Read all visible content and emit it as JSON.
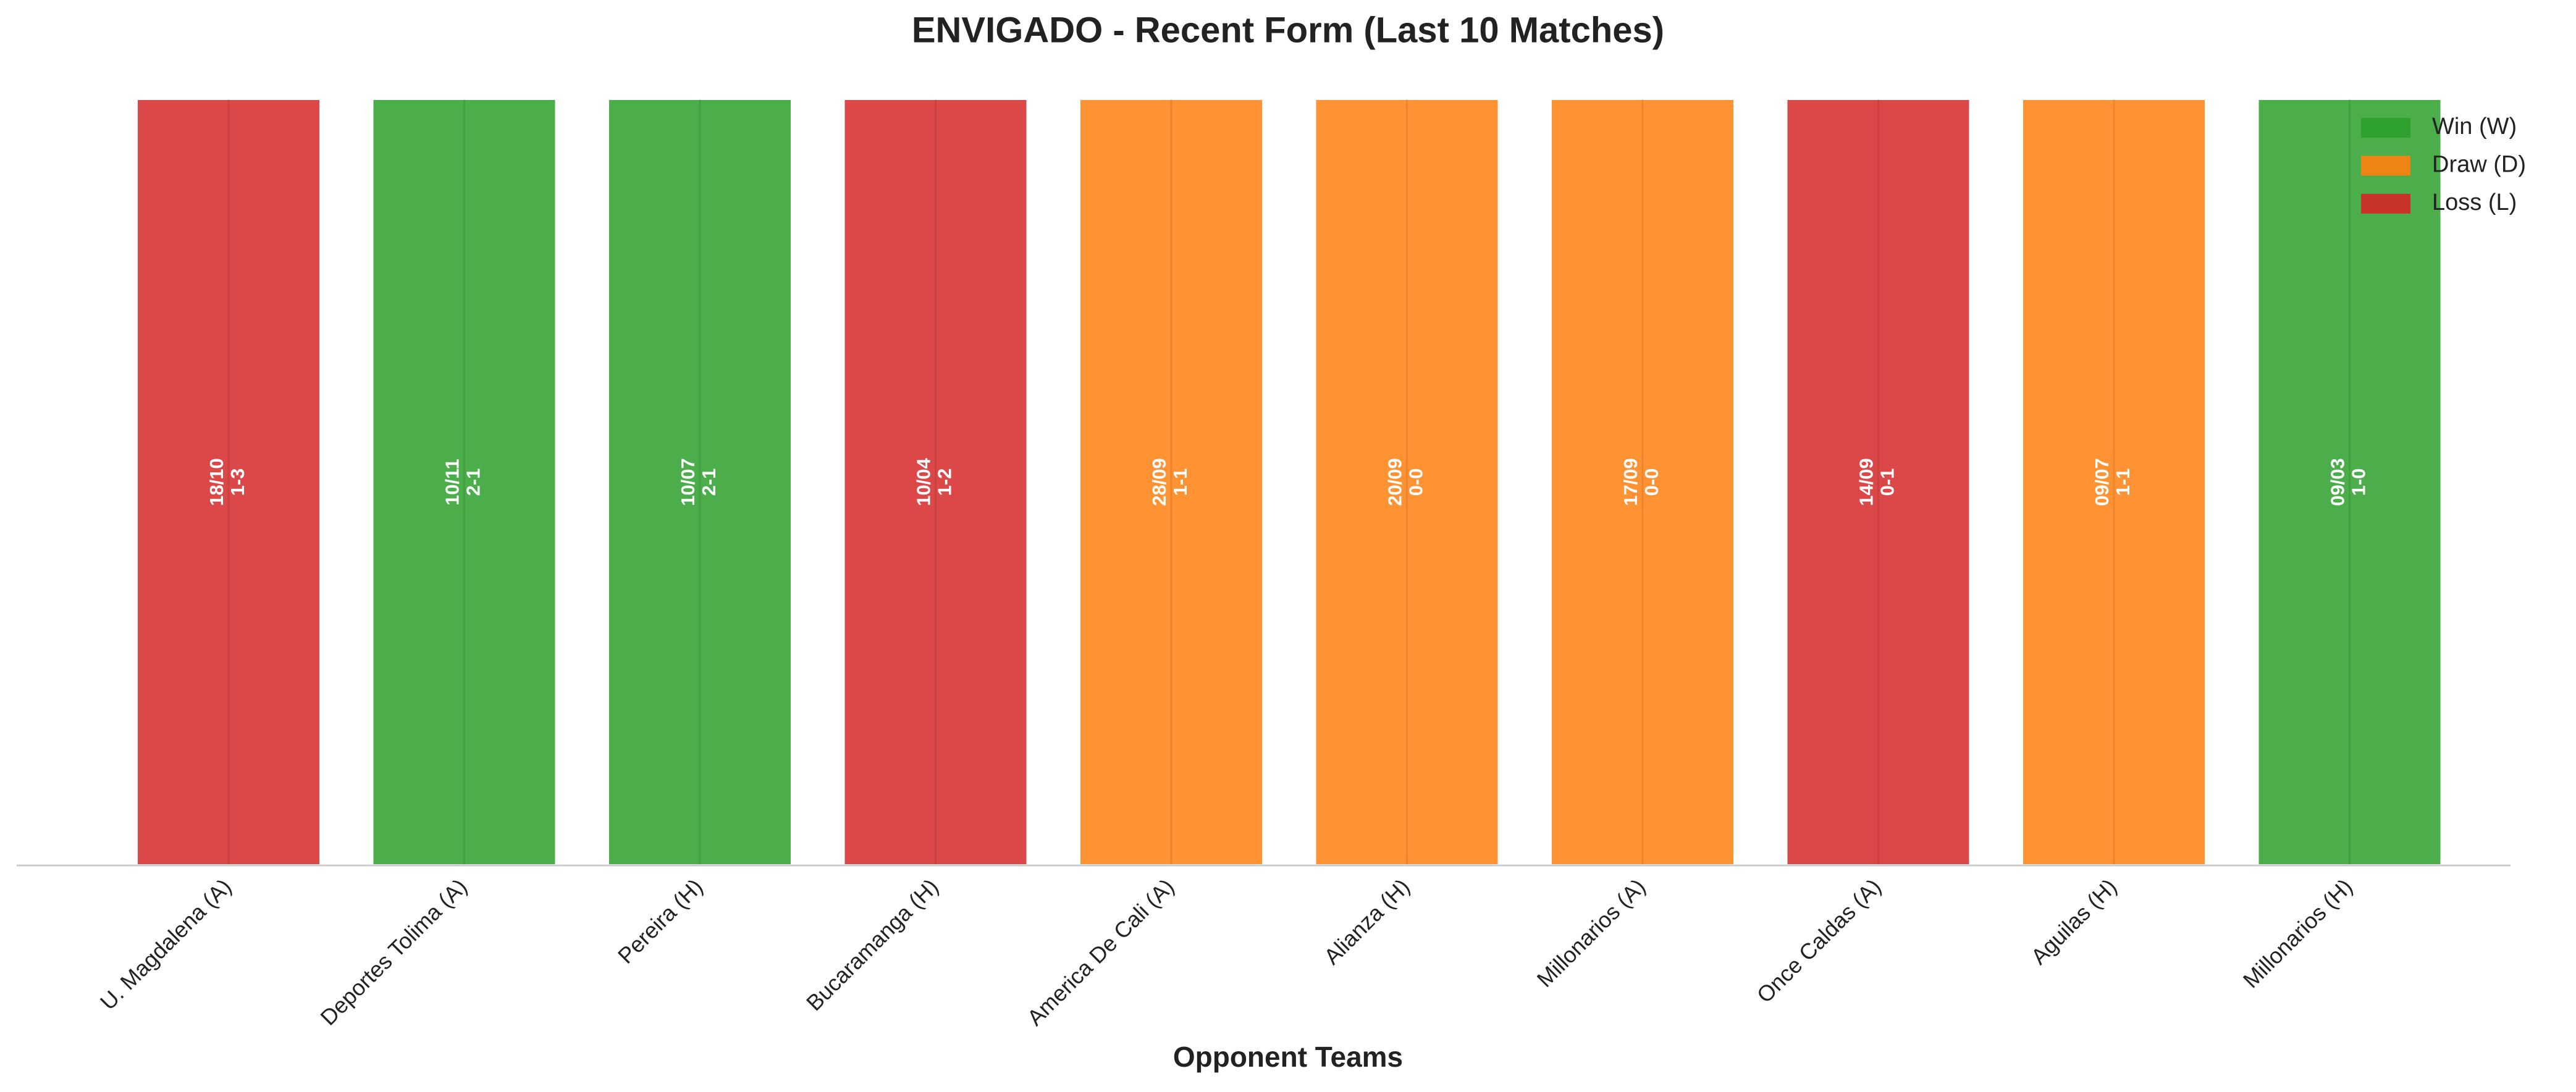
{
  "chart_data": {
    "type": "bar",
    "title": "ENVIGADO - Recent Form (Last 10 Matches)",
    "x_label": "Opponent Teams",
    "categories": [
      "U. Magdalena (A)",
      "Deportes Tolima (A)",
      "Pereira (H)",
      "Bucaramanga (H)",
      "America De Cali (A)",
      "Alianza (H)",
      "Millonarios (A)",
      "Once Caldas (A)",
      "Aguilas (H)",
      "Millonarios (H)"
    ],
    "values": [
      1,
      1,
      1,
      1,
      1,
      1,
      1,
      1,
      1,
      1
    ],
    "dates": [
      "18/10",
      "10/11",
      "10/07",
      "10/04",
      "28/09",
      "20/09",
      "17/09",
      "14/09",
      "09/07",
      "09/03"
    ],
    "scores": [
      "1-3",
      "2-1",
      "2-1",
      "1-2",
      "1-1",
      "0-0",
      "0-0",
      "0-1",
      "1-1",
      "1-0"
    ],
    "colors": [
      "#d62728",
      "#2ca02c",
      "#2ca02c",
      "#d62728",
      "#ff7f0e",
      "#ff7f0e",
      "#ff7f0e",
      "#d62728",
      "#ff7f0e",
      "#2ca02c"
    ],
    "ylim": [
      0,
      1
    ],
    "grid": true,
    "legend_position": "upper right",
    "legend": [
      {
        "name": "Win (W)",
        "color": "#2ca02c"
      },
      {
        "name": "Draw (D)",
        "color": "#ff7f0e"
      },
      {
        "name": "Loss (L)",
        "color": "#d62728"
      }
    ]
  }
}
